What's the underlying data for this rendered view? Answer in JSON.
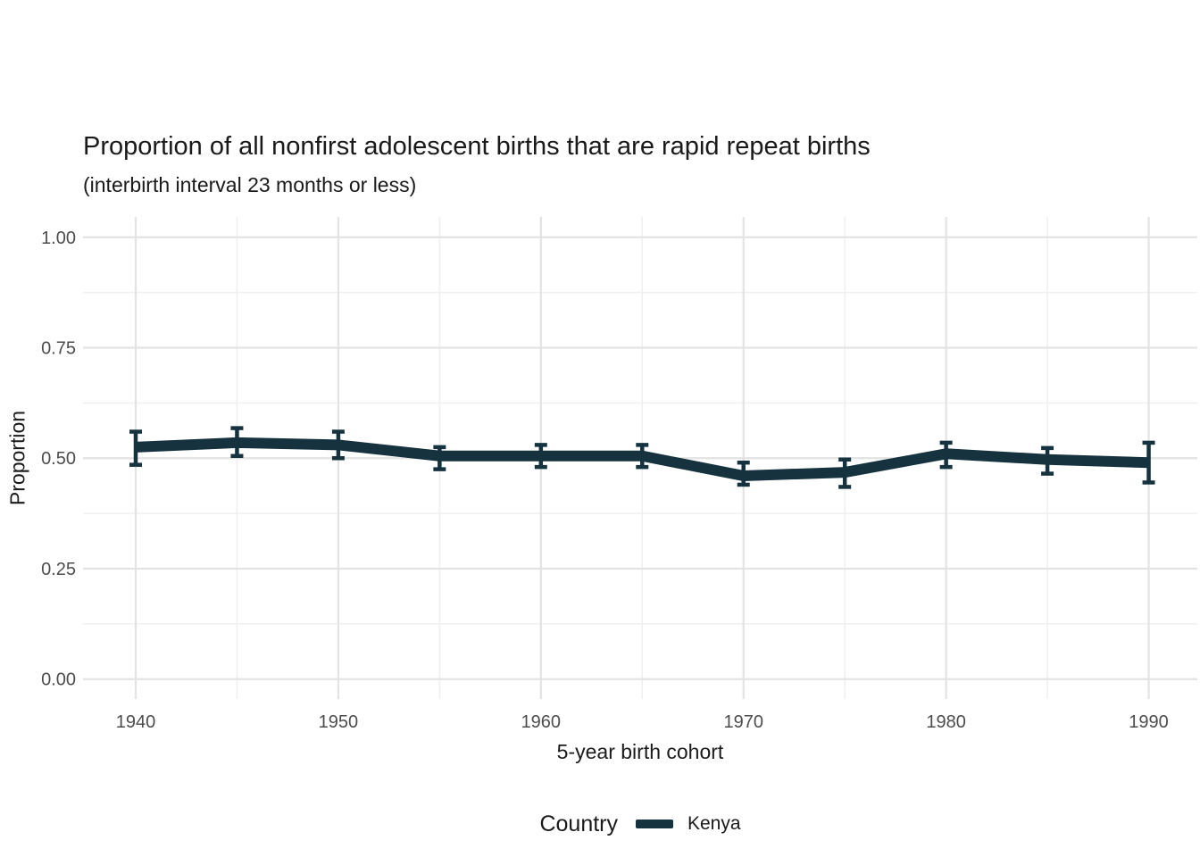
{
  "title": "Proportion of all nonfirst adolescent births that are rapid repeat births",
  "subtitle": "(interbirth interval 23 months or less)",
  "colors": {
    "background": "#ffffff",
    "line": "#16323e",
    "grid_major": "#e3e3e3",
    "grid_minor": "#f0f0f0",
    "tick_text": "#4d4d4d",
    "title_text": "#1a1a1a"
  },
  "chart_data": {
    "type": "line",
    "title": "Proportion of all nonfirst adolescent births that are rapid repeat births",
    "subtitle": "(interbirth interval 23 months or less)",
    "xlabel": "5-year birth cohort",
    "ylabel": "Proportion",
    "xlim": [
      1937.4,
      1992.4
    ],
    "ylim": [
      -0.045,
      1.046
    ],
    "grid": true,
    "x_ticks": {
      "values": [
        1940,
        1950,
        1960,
        1970,
        1980,
        1990
      ],
      "labels": [
        "1940",
        "1950",
        "1960",
        "1970",
        "1980",
        "1990"
      ]
    },
    "y_ticks": {
      "values": [
        0,
        0.25,
        0.5,
        0.75,
        1
      ],
      "labels": [
        "0.00",
        "0.25",
        "0.50",
        "0.75",
        "1.00"
      ]
    },
    "x_minor": [
      1945,
      1955,
      1965,
      1975,
      1985
    ],
    "y_minor": [
      0.125,
      0.375,
      0.625,
      0.875
    ],
    "legend": {
      "title": "Country",
      "position": "bottom",
      "entries": [
        {
          "label": "Kenya",
          "color": "#16323e"
        }
      ]
    },
    "series": [
      {
        "name": "Kenya",
        "color": "#16323e",
        "x": [
          1940,
          1945,
          1950,
          1955,
          1960,
          1965,
          1970,
          1975,
          1980,
          1985,
          1990
        ],
        "y": [
          0.525,
          0.535,
          0.53,
          0.505,
          0.505,
          0.505,
          0.46,
          0.468,
          0.51,
          0.497,
          0.49
        ],
        "ci_low": [
          0.485,
          0.505,
          0.5,
          0.475,
          0.48,
          0.48,
          0.44,
          0.435,
          0.48,
          0.465,
          0.445
        ],
        "ci_high": [
          0.56,
          0.568,
          0.56,
          0.525,
          0.53,
          0.53,
          0.49,
          0.497,
          0.535,
          0.523,
          0.535
        ]
      }
    ]
  }
}
